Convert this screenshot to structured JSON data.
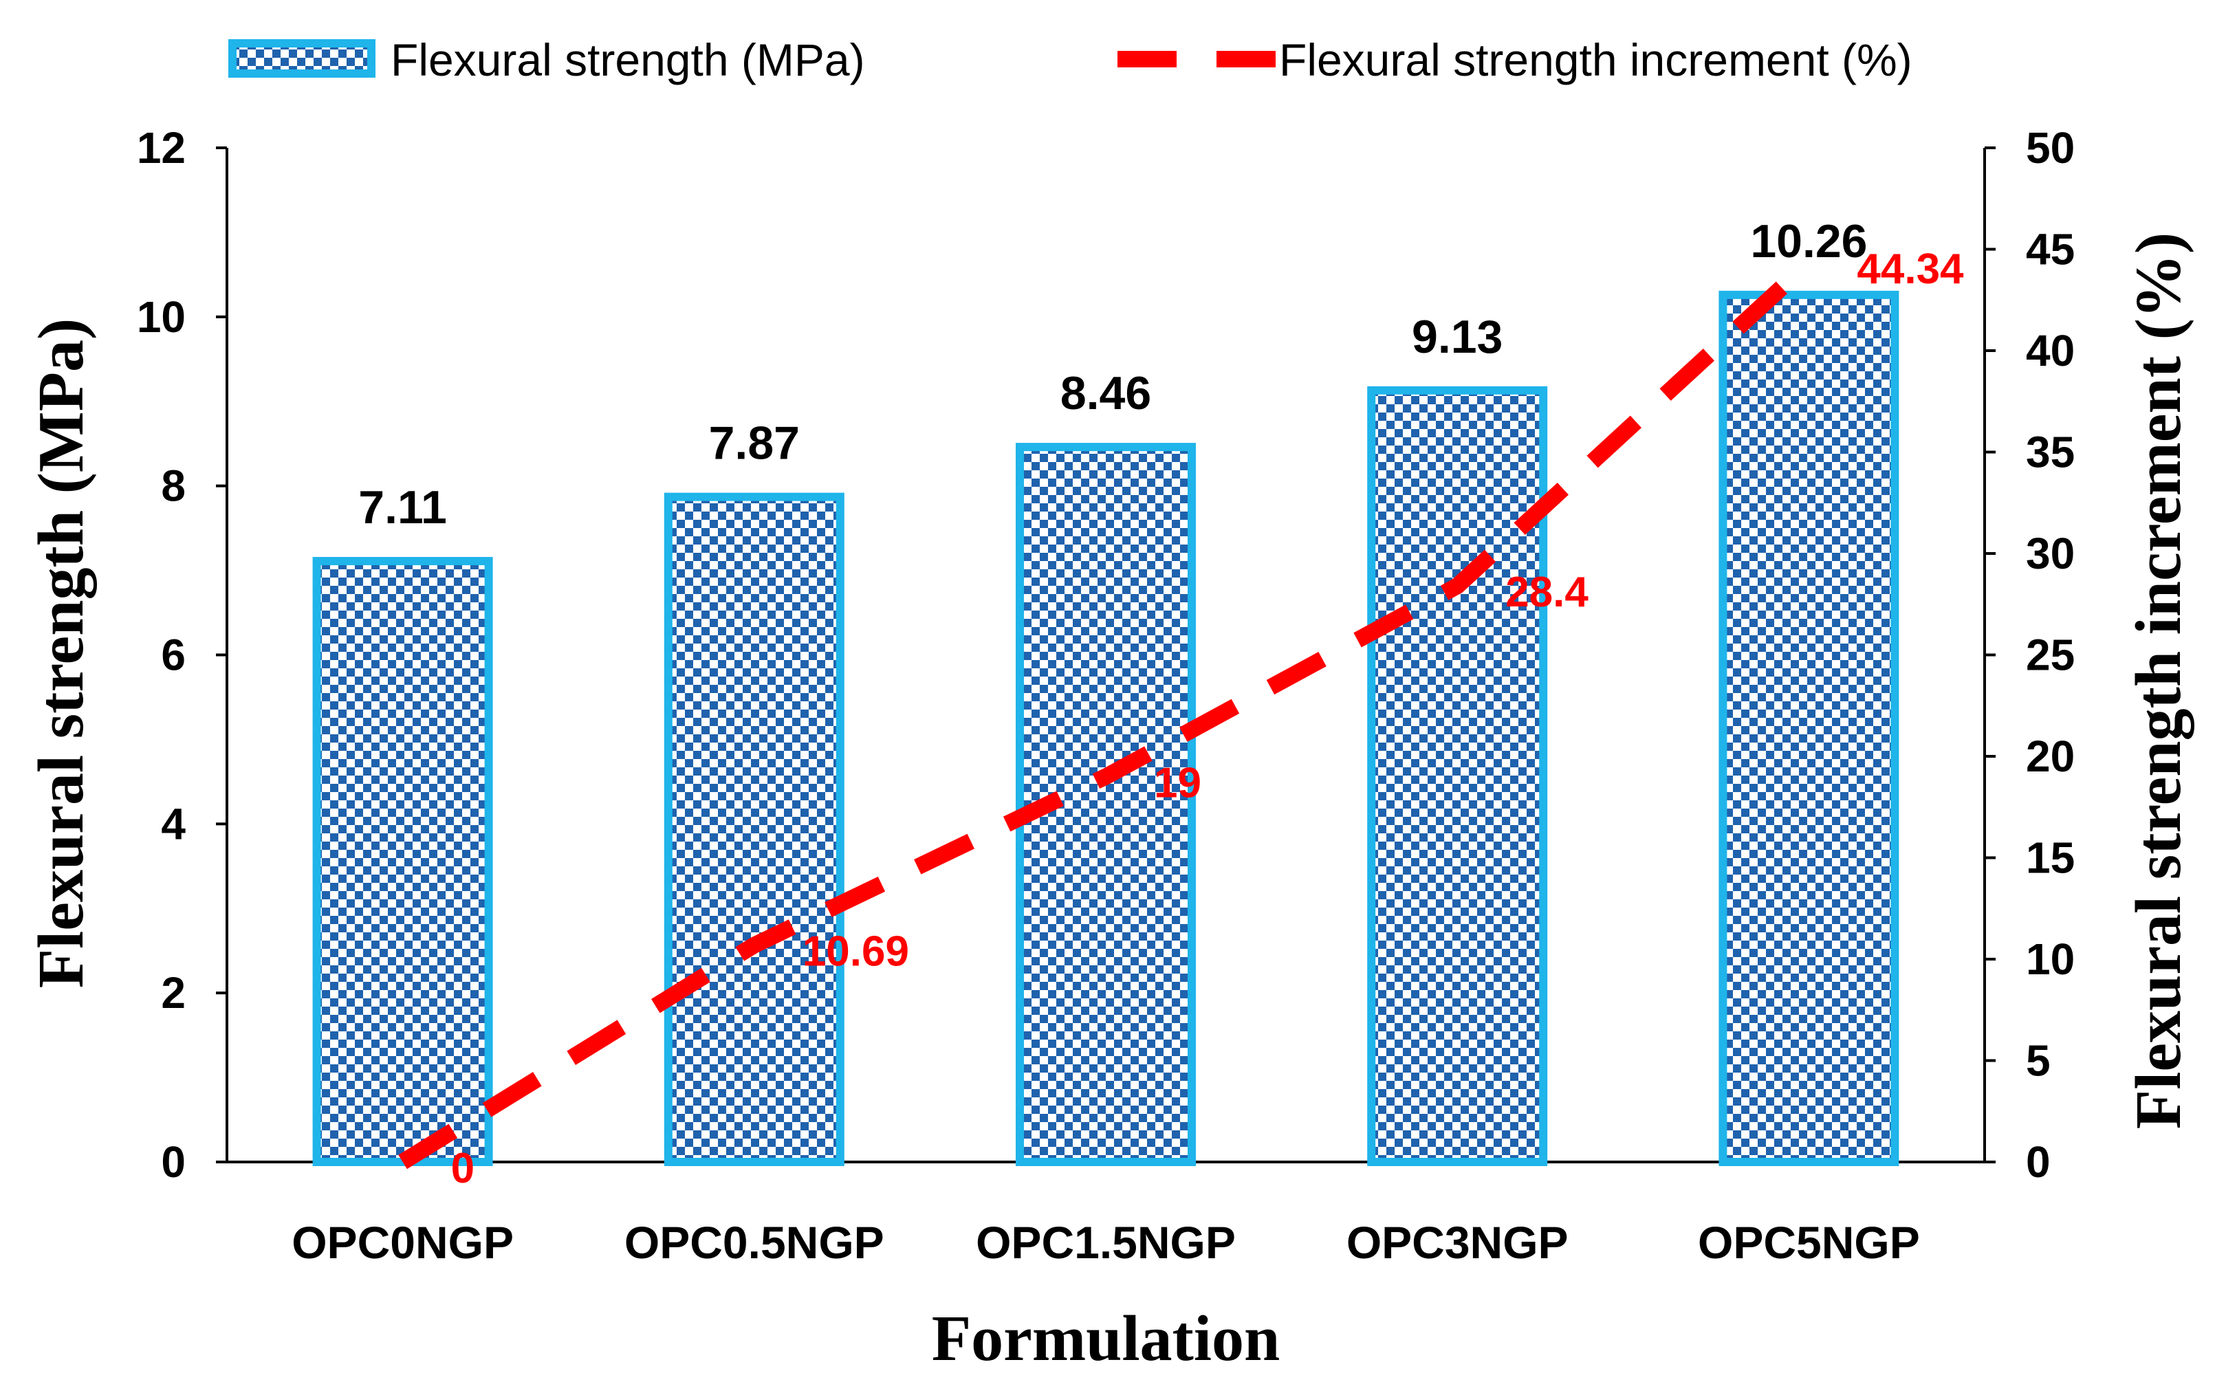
{
  "chart_data": {
    "type": "bar",
    "categories": [
      "OPC0NGP",
      "OPC0.5NGP",
      "OPC1.5NGP",
      "OPC3NGP",
      "OPC5NGP"
    ],
    "series": [
      {
        "name": "Flexural strength (MPa)",
        "type": "bar",
        "axis": "left",
        "values": [
          7.11,
          7.87,
          8.46,
          9.13,
          10.26
        ],
        "data_labels": [
          "7.11",
          "7.87",
          "8.46",
          "9.13",
          "10.26"
        ]
      },
      {
        "name": "Flexural strength increment (%)",
        "type": "line",
        "axis": "right",
        "values": [
          0,
          10.69,
          19,
          28.4,
          44.34
        ],
        "data_labels": [
          "0",
          "10.69",
          "19",
          "28.4",
          "44.34"
        ]
      }
    ],
    "xlabel": "Formulation",
    "ylabel": "Flexural strength (MPa)",
    "y2label": "Flexural strength increment (%)",
    "ylim": [
      0,
      12
    ],
    "y2lim": [
      0,
      50
    ],
    "yticks": [
      "0",
      "2",
      "4",
      "6",
      "8",
      "10",
      "12"
    ],
    "y2ticks": [
      "0",
      "5",
      "10",
      "15",
      "20",
      "25",
      "30",
      "35",
      "40",
      "45",
      "50"
    ],
    "legend_position": "top",
    "grid": false,
    "colors": {
      "bar_border": "#1fb4ea",
      "bar_fill": "#1f62ad",
      "bar_check": "#ffffff",
      "line": "#ff0000",
      "line_label": "#ff0000",
      "text": "#000000"
    }
  }
}
